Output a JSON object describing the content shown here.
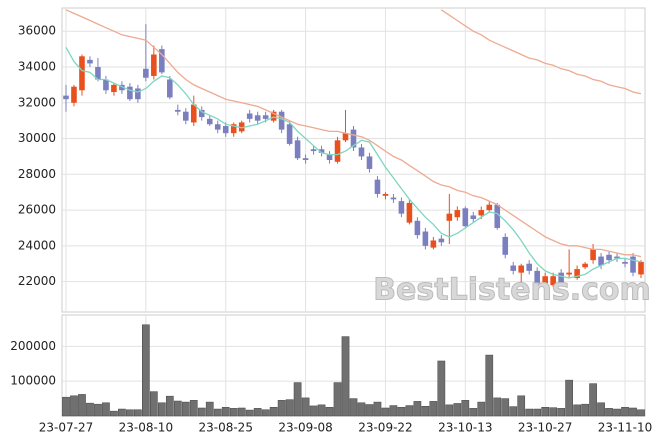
{
  "chart_data": {
    "type": "candlestick",
    "categories": [
      "23-07-27",
      null,
      null,
      null,
      null,
      null,
      null,
      null,
      null,
      null,
      "23-08-10",
      null,
      null,
      null,
      null,
      null,
      null,
      null,
      null,
      null,
      "23-08-25",
      null,
      null,
      null,
      null,
      null,
      null,
      null,
      null,
      null,
      "23-09-08",
      null,
      null,
      null,
      null,
      null,
      null,
      null,
      null,
      null,
      "23-09-22",
      null,
      null,
      null,
      null,
      null,
      null,
      null,
      null,
      null,
      "23-10-13",
      null,
      null,
      null,
      null,
      null,
      null,
      null,
      null,
      null,
      "23-10-27",
      null,
      null,
      null,
      null,
      null,
      null,
      null,
      null,
      null,
      "23-11-10",
      null,
      null
    ],
    "open": [
      32400,
      32000,
      32700,
      34400,
      34000,
      33300,
      32600,
      33000,
      32900,
      32800,
      33900,
      33500,
      35000,
      33300,
      31600,
      31500,
      30900,
      31600,
      31100,
      30800,
      30700,
      30300,
      30400,
      31400,
      31300,
      31300,
      31000,
      31500,
      30800,
      29900,
      28900,
      29400,
      29400,
      29100,
      28700,
      29900,
      30500,
      29500,
      29000,
      27700,
      26800,
      26700,
      26500,
      25300,
      25400,
      24800,
      23900,
      24400,
      25400,
      25600,
      26100,
      25700,
      25700,
      26000,
      26300,
      24500,
      22900,
      22500,
      23000,
      22600,
      21900,
      21800,
      22500,
      22400,
      22200,
      22800,
      23200,
      23400,
      23500,
      23400,
      23100,
      23400,
      22400
    ],
    "high": [
      33000,
      33000,
      34700,
      34600,
      34500,
      33500,
      33100,
      33200,
      33100,
      33000,
      36400,
      35200,
      35200,
      33500,
      31900,
      31700,
      32400,
      31800,
      31300,
      31000,
      30900,
      30900,
      31000,
      31600,
      31500,
      31500,
      31600,
      31600,
      31000,
      30100,
      29100,
      29600,
      29600,
      29300,
      30100,
      31600,
      30700,
      29700,
      29200,
      27900,
      27000,
      26900,
      26700,
      26600,
      25600,
      25000,
      24500,
      24600,
      26900,
      26200,
      26200,
      25900,
      26200,
      26500,
      26400,
      24700,
      23100,
      23000,
      23200,
      22800,
      22500,
      22500,
      22700,
      23800,
      22900,
      23100,
      24100,
      23600,
      23700,
      23600,
      23300,
      23600,
      23200
    ],
    "low": [
      31500,
      31800,
      32400,
      34000,
      33200,
      32500,
      32400,
      32500,
      32100,
      32000,
      33200,
      33300,
      33600,
      32200,
      31300,
      30800,
      30700,
      31000,
      30700,
      30300,
      30100,
      30100,
      30300,
      30900,
      30800,
      30900,
      30900,
      30300,
      29600,
      28800,
      28600,
      29100,
      29000,
      28600,
      28600,
      29800,
      29300,
      28800,
      28100,
      26700,
      26600,
      26400,
      25600,
      25200,
      24400,
      23800,
      23800,
      24000,
      24100,
      25400,
      25000,
      25300,
      25500,
      25900,
      24900,
      23300,
      22400,
      21900,
      22400,
      21700,
      21700,
      21700,
      21800,
      22200,
      22100,
      22700,
      23000,
      22700,
      23000,
      23100,
      22800,
      22300,
      22200
    ],
    "close": [
      32200,
      32900,
      34600,
      34200,
      33300,
      32700,
      33000,
      32700,
      32200,
      32200,
      33400,
      34700,
      33700,
      32300,
      31500,
      31000,
      31900,
      31200,
      30800,
      30500,
      30300,
      30800,
      30900,
      31100,
      31000,
      31100,
      31500,
      30500,
      29700,
      28900,
      28800,
      29300,
      29200,
      28800,
      29900,
      30300,
      29500,
      29000,
      28300,
      26900,
      26900,
      26600,
      25800,
      26400,
      24600,
      24000,
      24300,
      24200,
      25800,
      26000,
      25100,
      25500,
      26000,
      26300,
      25000,
      23500,
      22600,
      22900,
      22600,
      21900,
      22300,
      22300,
      21900,
      22500,
      22700,
      23000,
      23800,
      22900,
      23200,
      23300,
      23000,
      22500,
      23100
    ],
    "volume": [
      54000,
      58000,
      62000,
      37000,
      34000,
      38000,
      14000,
      20000,
      18000,
      18000,
      262000,
      70000,
      38000,
      57000,
      43000,
      40000,
      45000,
      23000,
      40000,
      20000,
      25000,
      22000,
      23000,
      17000,
      22000,
      18000,
      25000,
      45000,
      47000,
      96000,
      52000,
      29000,
      32000,
      25000,
      96000,
      228000,
      50000,
      38000,
      33000,
      40000,
      23000,
      30000,
      25000,
      30000,
      42000,
      28000,
      42000,
      158000,
      32000,
      36000,
      45000,
      22000,
      40000,
      175000,
      52000,
      50000,
      27000,
      58000,
      20000,
      20000,
      25000,
      24000,
      22000,
      103000,
      32000,
      34000,
      93000,
      38000,
      22000,
      20000,
      25000,
      23000,
      18000
    ],
    "ma_lines": [
      {
        "color": "#7fd6c0",
        "values": [
          35100,
          34300,
          33800,
          33700,
          33300,
          33300,
          33100,
          32900,
          32700,
          32600,
          32800,
          33200,
          33500,
          33400,
          33000,
          32500,
          31900,
          31500,
          31300,
          31100,
          30800,
          30700,
          30600,
          30700,
          30800,
          31000,
          31200,
          31100,
          30900,
          30400,
          30000,
          29600,
          29200,
          29100,
          29100,
          29300,
          29600,
          29900,
          29800,
          29100,
          28400,
          27800,
          27200,
          26600,
          26100,
          25600,
          25200,
          24700,
          24500,
          24700,
          25000,
          25300,
          25600,
          25900,
          25800,
          25400,
          24900,
          24300,
          23600,
          23000,
          22600,
          22400,
          22300,
          22200,
          22300,
          22400,
          22700,
          22900,
          23100,
          23300,
          23300,
          23200,
          23100
        ]
      },
      {
        "color": "#eeaa90",
        "values": [
          37200,
          37000,
          36800,
          36600,
          36400,
          36200,
          36000,
          35800,
          35700,
          35600,
          35500,
          35100,
          34700,
          34200,
          33700,
          33300,
          33000,
          32800,
          32600,
          32400,
          32200,
          32100,
          32000,
          31900,
          31800,
          31600,
          31400,
          31200,
          31000,
          30800,
          30700,
          30600,
          30500,
          30400,
          30400,
          30300,
          30200,
          30100,
          29900,
          29600,
          29300,
          29000,
          28800,
          28500,
          28200,
          27900,
          27600,
          27400,
          27300,
          27100,
          27000,
          26800,
          26700,
          26500,
          26300,
          26000,
          25700,
          25400,
          25100,
          24800,
          24500,
          24300,
          24100,
          24000,
          24000,
          23900,
          23800,
          23800,
          23700,
          23600,
          23500,
          23500,
          23400
        ]
      },
      {
        "color": "#eeaa90",
        "values": [
          null,
          null,
          null,
          null,
          null,
          null,
          null,
          null,
          null,
          null,
          null,
          null,
          null,
          null,
          null,
          null,
          null,
          null,
          null,
          null,
          null,
          null,
          null,
          null,
          null,
          null,
          null,
          null,
          null,
          null,
          null,
          null,
          null,
          null,
          null,
          null,
          null,
          null,
          null,
          null,
          null,
          null,
          null,
          null,
          null,
          null,
          null,
          37200,
          36900,
          36600,
          36300,
          36000,
          35800,
          35500,
          35300,
          35100,
          34900,
          34700,
          34500,
          34400,
          34200,
          34100,
          33900,
          33800,
          33600,
          33500,
          33300,
          33200,
          33000,
          32900,
          32800,
          32600,
          32500
        ]
      }
    ],
    "up_color": "#e8501e",
    "down_color": "#7b7fc0",
    "volume_color": "#707070",
    "ylim": [
      20300,
      37300
    ],
    "yticks": [
      22000,
      24000,
      26000,
      28000,
      30000,
      32000,
      34000,
      36000
    ],
    "volume_ylim": [
      0,
      290000
    ],
    "volume_yticks": [
      100000,
      200000
    ],
    "grid": true,
    "watermark": "BestListens.com"
  }
}
